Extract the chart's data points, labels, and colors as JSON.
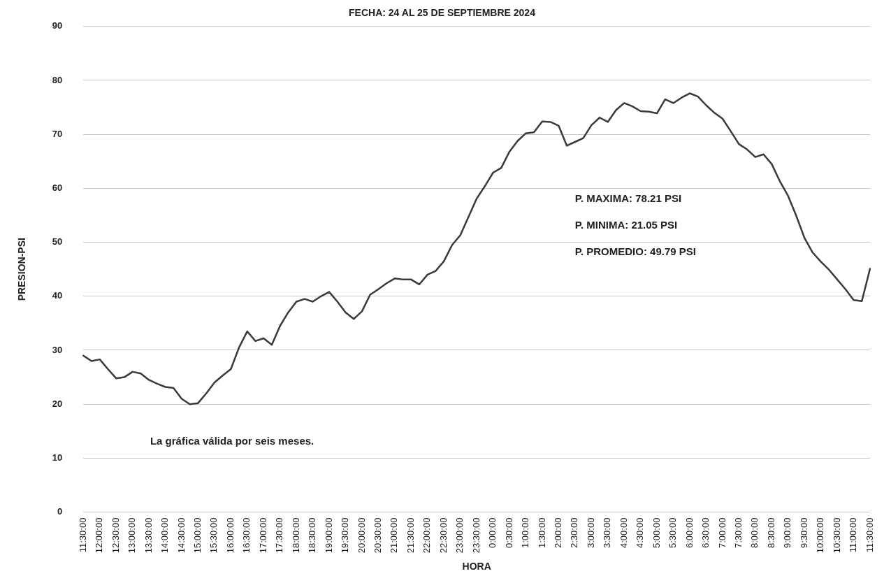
{
  "chart_data": {
    "type": "line",
    "title": "FECHA: 24 AL 25 DE SEPTIEMBRE 2024",
    "xlabel": "HORA",
    "ylabel": "PRESION-PSI",
    "categories": [
      "11:30:00",
      null,
      "12:00:00",
      null,
      "12:30:00",
      null,
      "13:00:00",
      null,
      "13:30:00",
      null,
      "14:00:00",
      null,
      "14:30:00",
      null,
      "15:00:00",
      null,
      "15:30:00",
      null,
      "16:00:00",
      null,
      "16:30:00",
      null,
      "17:00:00",
      null,
      "17:30:00",
      null,
      "18:00:00",
      null,
      "18:30:00",
      null,
      "19:00:00",
      null,
      "19:30:00",
      null,
      "20:00:00",
      null,
      "20:30:00",
      null,
      "21:00:00",
      null,
      "21:30:00",
      null,
      "22:00:00",
      null,
      "22:30:00",
      null,
      "23:00:00",
      null,
      "23:30:00",
      null,
      "0:00:00",
      null,
      "0:30:00",
      null,
      "1:00:00",
      null,
      "1:30:00",
      null,
      "2:00:00",
      null,
      "2:30:00",
      null,
      "3:00:00",
      null,
      "3:30:00",
      null,
      "4:00:00",
      null,
      "4:30:00",
      null,
      "5:00:00",
      null,
      "5:30:00",
      null,
      "6:00:00",
      null,
      "6:30:00",
      null,
      "7:00:00",
      null,
      "7:30:00",
      null,
      "8:00:00",
      null,
      "8:30:00",
      null,
      "9:00:00",
      null,
      "9:30:00",
      null,
      "10:00:00",
      null,
      "10:30:00",
      null,
      "11:00:00",
      null,
      "11:30:00"
    ],
    "series": [
      {
        "color": "#3a3a3a",
        "values": [
          29,
          28,
          28.3,
          26.5,
          24.8,
          25,
          26,
          25.7,
          24.5,
          23.8,
          23.2,
          23,
          21,
          20,
          20.2,
          22,
          24,
          25.3,
          26.5,
          30.5,
          33.5,
          31.7,
          32.2,
          31,
          34.5,
          37,
          39,
          39.5,
          39,
          40,
          40.8,
          39,
          37,
          35.8,
          37.2,
          40.3,
          41.3,
          42.4,
          43.3,
          43.1,
          43.1,
          42.2,
          44,
          44.7,
          46.5,
          49.5,
          51.3,
          54.7,
          58.1,
          60.4,
          62.9,
          63.8,
          66.8,
          68.8,
          70.2,
          70.4,
          72.4,
          72.3,
          71.6,
          67.9,
          68.6,
          69.3,
          71.7,
          73.1,
          72.3,
          74.5,
          75.8,
          75.2,
          74.3,
          74.2,
          73.9,
          76.5,
          75.8,
          76.8,
          77.6,
          77,
          75.4,
          74,
          72.9,
          70.6,
          68.2,
          67.2,
          65.8,
          66.3,
          64.5,
          61.3,
          58.6,
          54.9,
          50.8,
          48.1,
          46.4,
          44.9,
          43.1,
          41.3,
          39.3,
          39.1,
          45.1
        ]
      }
    ],
    "ylim": [
      0,
      90
    ],
    "yticks": [
      0,
      10,
      20,
      30,
      40,
      50,
      60,
      70,
      80,
      90
    ],
    "grid": "y",
    "legend": false,
    "marker": "none",
    "line_style": "solid",
    "annotations": [
      "La gráfica válida por seis meses.",
      "P. MAXIMA: 78.21 PSI",
      "P. MINIMA: 21.05 PSI",
      "P. PROMEDIO: 49.79 PSI"
    ]
  }
}
